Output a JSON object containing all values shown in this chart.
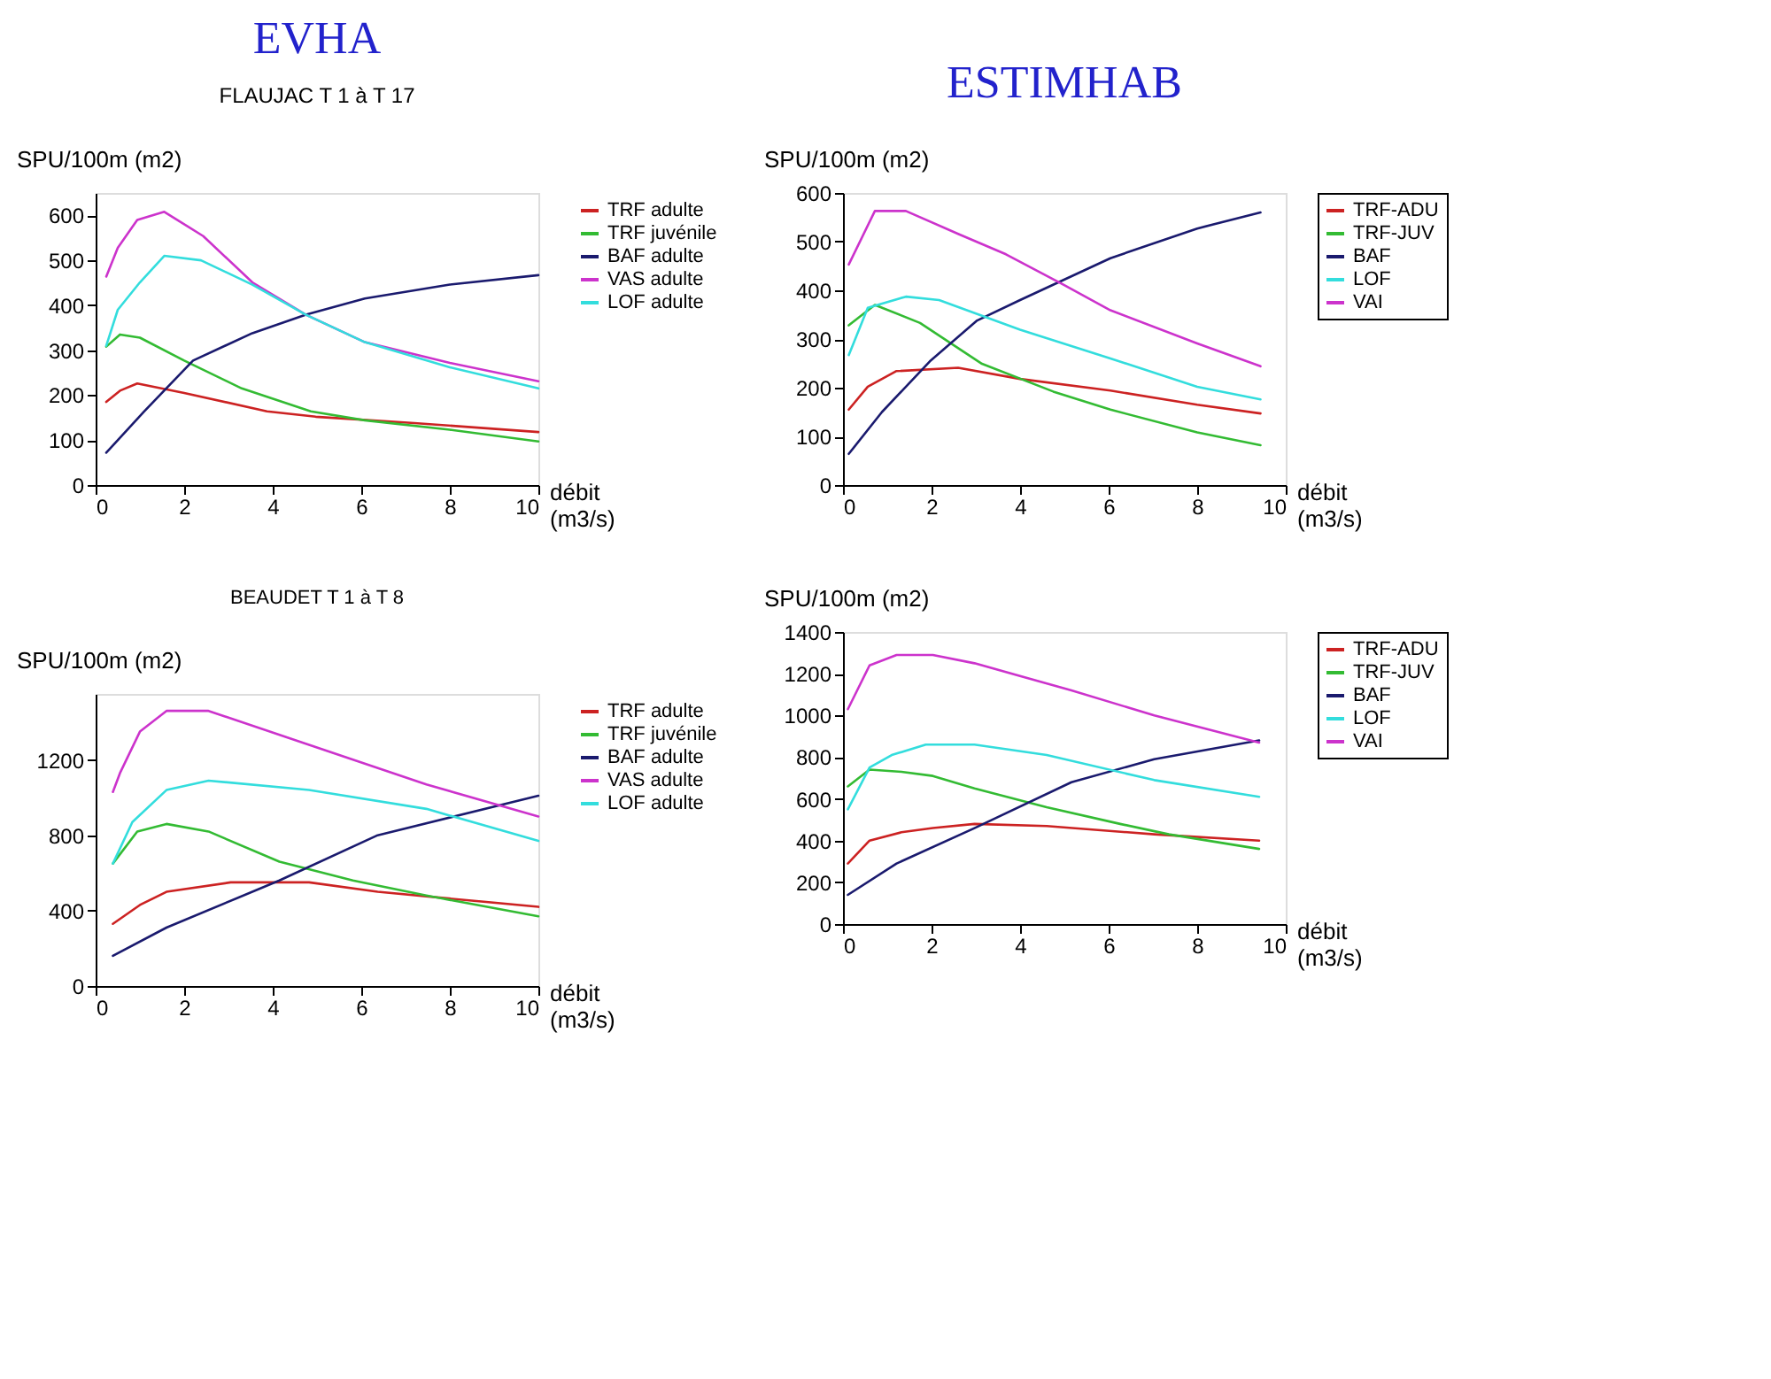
{
  "chart_data": [
    {
      "type": "line",
      "title": "EVHA",
      "subtitle": "FLAUJAC T 1 à T 17",
      "xlabel": "débit (m3/s)",
      "ylabel": "SPU/100m (m2)",
      "xlim": [
        0,
        10
      ],
      "xticks": [
        0,
        2,
        4,
        6,
        8,
        10
      ],
      "ylim": [
        0,
        650
      ],
      "yticks": [
        0,
        100,
        200,
        300,
        400,
        500,
        600
      ],
      "grid": false,
      "legend": "right",
      "marker": "none",
      "line_style": "solid",
      "series": [
        {
          "name": "TRF adulte",
          "color": "#cc2222",
          "x": [
            0.24,
            0.55,
            0.94,
            2.0,
            3.87,
            4.97,
            7.2,
            10
          ],
          "values": [
            185,
            210,
            226,
            205,
            164,
            152,
            138,
            118
          ]
        },
        {
          "name": "TRF juvénile",
          "color": "#33bb33",
          "x": [
            0.24,
            0.55,
            1.0,
            2.0,
            3.3,
            4.86,
            6.08,
            8,
            10
          ],
          "values": [
            308,
            335,
            328,
            277,
            215,
            164,
            144,
            123,
            97
          ]
        },
        {
          "name": "BAF adulte",
          "color": "#1a1a6e",
          "x": [
            0.24,
            1.1,
            2.2,
            3.54,
            4.75,
            6.08,
            8,
            10
          ],
          "values": [
            72,
            164,
            277,
            338,
            379,
            415,
            446,
            467
          ]
        },
        {
          "name": "VAS adulte",
          "color": "#cc33cc",
          "x": [
            0.24,
            0.5,
            0.94,
            1.55,
            2.43,
            3.54,
            4.75,
            6.08,
            8,
            10
          ],
          "values": [
            464,
            528,
            590,
            608,
            554,
            451,
            379,
            318,
            272,
            231
          ]
        },
        {
          "name": "LOF adulte",
          "color": "#33dddd",
          "x": [
            0.24,
            0.5,
            1.0,
            1.55,
            2.38,
            3.54,
            4.75,
            6.08,
            8,
            10
          ],
          "values": [
            310,
            390,
            451,
            510,
            500,
            446,
            379,
            318,
            262,
            215
          ]
        }
      ]
    },
    {
      "type": "line",
      "title": "ESTIMHAB",
      "xlabel": "débit (m3/s)",
      "ylabel": "SPU/100m (m2)",
      "xlim": [
        0,
        10
      ],
      "xticks": [
        0,
        2,
        4,
        6,
        8,
        10
      ],
      "ylim": [
        0,
        600
      ],
      "yticks": [
        0,
        100,
        200,
        300,
        400,
        500,
        600
      ],
      "grid": false,
      "legend": "right",
      "marker": "none",
      "line_style": "solid",
      "series": [
        {
          "name": "TRF-ADU",
          "color": "#cc2222",
          "x": [
            0.13,
            0.56,
            1.2,
            2.6,
            4.0,
            6.04,
            8,
            9.43
          ],
          "values": [
            155,
            202,
            234,
            241,
            218,
            194,
            165,
            147
          ]
        },
        {
          "name": "TRF-JUV",
          "color": "#33bb33",
          "x": [
            0.13,
            0.72,
            1.74,
            3.14,
            4.75,
            6.04,
            8,
            9.43
          ],
          "values": [
            328,
            370,
            333,
            249,
            192,
            155,
            108,
            82
          ]
        },
        {
          "name": "BAF",
          "color": "#1a1a6e",
          "x": [
            0.13,
            0.88,
            1.96,
            3.03,
            4.0,
            6.04,
            8,
            9.43
          ],
          "values": [
            64,
            150,
            254,
            338,
            380,
            466,
            527,
            560
          ]
        },
        {
          "name": "LOF",
          "color": "#33dddd",
          "x": [
            0.13,
            0.56,
            1.42,
            2.17,
            4.0,
            6.04,
            8,
            9.43
          ],
          "values": [
            267,
            364,
            387,
            380,
            319,
            260,
            202,
            176
          ]
        },
        {
          "name": "VAI",
          "color": "#cc33cc",
          "x": [
            0.13,
            0.72,
            1.42,
            2.6,
            3.68,
            4.97,
            6.04,
            8,
            9.43
          ],
          "values": [
            453,
            563,
            563,
            516,
            474,
            412,
            359,
            291,
            244
          ]
        }
      ]
    },
    {
      "type": "line",
      "title": "BEAUDET T 1 à T 8",
      "xlabel": "débit (m3/s)",
      "ylabel": "SPU/100m (m2)",
      "xlim": [
        0,
        10
      ],
      "xticks": [
        0,
        2,
        4,
        6,
        8,
        10
      ],
      "ylim": [
        0,
        1550
      ],
      "yticks": [
        0,
        400,
        800,
        1200
      ],
      "grid": false,
      "legend": "right",
      "marker": "none",
      "line_style": "solid",
      "series": [
        {
          "name": "TRF adulte",
          "color": "#cc2222",
          "x": [
            0.39,
            1.0,
            1.6,
            3.05,
            4.82,
            6.37,
            10
          ],
          "values": [
            330,
            430,
            500,
            550,
            550,
            500,
            420
          ]
        },
        {
          "name": "TRF juvénile",
          "color": "#33bb33",
          "x": [
            0.39,
            0.94,
            1.6,
            2.55,
            4.15,
            5.81,
            7.47,
            10
          ],
          "values": [
            650,
            820,
            860,
            820,
            660,
            560,
            480,
            370
          ]
        },
        {
          "name": "BAF adulte",
          "color": "#1a1a6e",
          "x": [
            0.39,
            1.6,
            4.15,
            6.37,
            10
          ],
          "values": [
            160,
            310,
            560,
            800,
            1010
          ]
        },
        {
          "name": "VAS adulte",
          "color": "#cc33cc",
          "x": [
            0.39,
            0.55,
            1.0,
            1.6,
            2.55,
            4.82,
            7.47,
            10
          ],
          "values": [
            1030,
            1130,
            1350,
            1460,
            1460,
            1280,
            1070,
            900
          ]
        },
        {
          "name": "LOF adulte",
          "color": "#33dddd",
          "x": [
            0.39,
            0.83,
            1.6,
            2.55,
            4.82,
            7.47,
            10
          ],
          "values": [
            650,
            870,
            1040,
            1090,
            1040,
            940,
            770
          ]
        }
      ]
    },
    {
      "type": "line",
      "xlabel": "débit (m3/s)",
      "ylabel": "SPU/100m (m2)",
      "xlim": [
        0,
        10
      ],
      "xticks": [
        0,
        2,
        4,
        6,
        8,
        10
      ],
      "ylim": [
        0,
        1400
      ],
      "yticks": [
        0,
        200,
        400,
        600,
        800,
        1000,
        1200,
        1400
      ],
      "grid": false,
      "legend": "right",
      "marker": "none",
      "line_style": "solid",
      "series": [
        {
          "name": "TRF-ADU",
          "color": "#cc2222",
          "x": [
            0.11,
            0.6,
            1.32,
            2.03,
            2.97,
            4.6,
            7.03,
            9.4
          ],
          "values": [
            290,
            400,
            440,
            460,
            480,
            470,
            430,
            400
          ]
        },
        {
          "name": "TRF-JUV",
          "color": "#33bb33",
          "x": [
            0.11,
            0.6,
            1.32,
            2.03,
            2.97,
            4.6,
            6.26,
            7.36,
            9.4
          ],
          "values": [
            660,
            740,
            730,
            710,
            650,
            560,
            480,
            430,
            360
          ]
        },
        {
          "name": "BAF",
          "color": "#1a1a6e",
          "x": [
            0.11,
            1.21,
            2.97,
            5.16,
            7.03,
            9.4
          ],
          "values": [
            140,
            290,
            460,
            680,
            790,
            880
          ]
        },
        {
          "name": "LOF",
          "color": "#33dddd",
          "x": [
            0.11,
            0.6,
            1.1,
            1.87,
            2.97,
            4.6,
            7.03,
            9.4
          ],
          "values": [
            550,
            750,
            810,
            860,
            860,
            810,
            690,
            610
          ]
        },
        {
          "name": "VAI",
          "color": "#cc33cc",
          "x": [
            0.11,
            0.6,
            1.21,
            2.03,
            2.97,
            5.16,
            7.03,
            9.4
          ],
          "values": [
            1030,
            1240,
            1290,
            1290,
            1250,
            1120,
            1000,
            870
          ]
        }
      ]
    }
  ]
}
